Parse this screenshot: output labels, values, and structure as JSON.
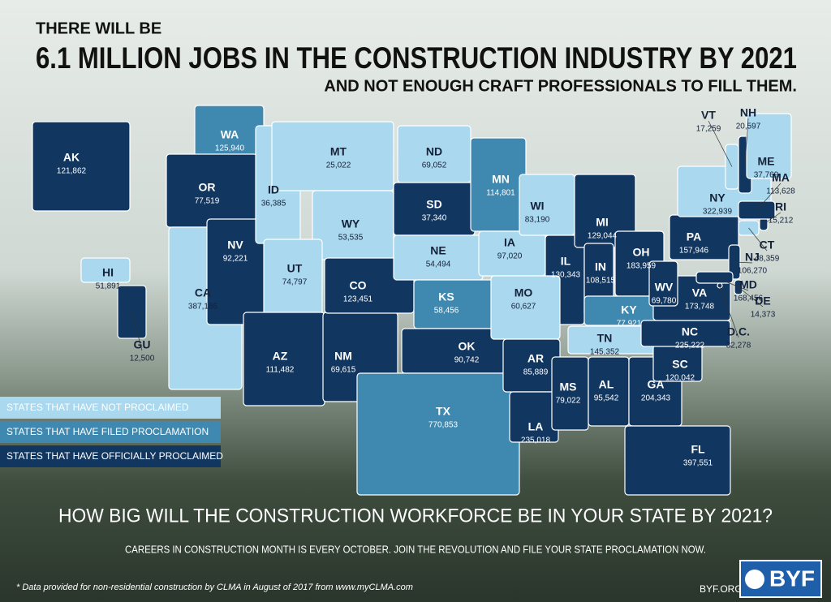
{
  "header": {
    "line1": "THERE WILL BE",
    "line2": "6.1 MILLION JOBS IN THE CONSTRUCTION INDUSTRY BY 2021",
    "line3": "AND NOT ENOUGH CRAFT PROFESSIONALS TO FILL THEM."
  },
  "legend": [
    {
      "label": "STATES THAT HAVE NOT PROCLAIMED",
      "color": "#a9d8ef"
    },
    {
      "label": "STATES THAT HAVE FILED PROCLAMATION",
      "color": "#3f88b0"
    },
    {
      "label": "STATES THAT HAVE OFFICIALLY PROCLAIMED",
      "color": "#113660"
    }
  ],
  "states": [
    {
      "abbr": "AK",
      "jobs": "121,862",
      "status": 2
    },
    {
      "abbr": "WA",
      "jobs": "125,940",
      "status": 1
    },
    {
      "abbr": "OR",
      "jobs": "77,519",
      "status": 2
    },
    {
      "abbr": "CA",
      "jobs": "387,186",
      "status": 0
    },
    {
      "abbr": "NV",
      "jobs": "92,221",
      "status": 2
    },
    {
      "abbr": "ID",
      "jobs": "36,385",
      "status": 0
    },
    {
      "abbr": "MT",
      "jobs": "25,022",
      "status": 0
    },
    {
      "abbr": "WY",
      "jobs": "53,535",
      "status": 0
    },
    {
      "abbr": "UT",
      "jobs": "74,797",
      "status": 0
    },
    {
      "abbr": "AZ",
      "jobs": "111,482",
      "status": 2
    },
    {
      "abbr": "NM",
      "jobs": "69,615",
      "status": 2
    },
    {
      "abbr": "CO",
      "jobs": "123,451",
      "status": 2
    },
    {
      "abbr": "ND",
      "jobs": "69,052",
      "status": 0
    },
    {
      "abbr": "SD",
      "jobs": "37,340",
      "status": 2
    },
    {
      "abbr": "NE",
      "jobs": "54,494",
      "status": 0
    },
    {
      "abbr": "KS",
      "jobs": "58,456",
      "status": 1
    },
    {
      "abbr": "OK",
      "jobs": "90,742",
      "status": 2
    },
    {
      "abbr": "TX",
      "jobs": "770,853",
      "status": 1
    },
    {
      "abbr": "MN",
      "jobs": "114,801",
      "status": 1
    },
    {
      "abbr": "IA",
      "jobs": "97,020",
      "status": 0
    },
    {
      "abbr": "WI",
      "jobs": "83,190",
      "status": 0
    },
    {
      "abbr": "IL",
      "jobs": "130,343",
      "status": 2
    },
    {
      "abbr": "MI",
      "jobs": "129,044",
      "status": 2
    },
    {
      "abbr": "IN",
      "jobs": "108,515",
      "status": 2
    },
    {
      "abbr": "OH",
      "jobs": "183,959",
      "status": 2
    },
    {
      "abbr": "MO",
      "jobs": "60,627",
      "status": 0
    },
    {
      "abbr": "KY",
      "jobs": "77,921",
      "status": 1
    },
    {
      "abbr": "TN",
      "jobs": "145,352",
      "status": 0
    },
    {
      "abbr": "AR",
      "jobs": "85,889",
      "status": 2
    },
    {
      "abbr": "LA",
      "jobs": "235,018",
      "status": 2
    },
    {
      "abbr": "MS",
      "jobs": "79,022",
      "status": 2
    },
    {
      "abbr": "AL",
      "jobs": "95,542",
      "status": 2
    },
    {
      "abbr": "GA",
      "jobs": "204,343",
      "status": 2
    },
    {
      "abbr": "FL",
      "jobs": "397,551",
      "status": 2
    },
    {
      "abbr": "SC",
      "jobs": "120,042",
      "status": 2
    },
    {
      "abbr": "NC",
      "jobs": "225,222",
      "status": 2
    },
    {
      "abbr": "VA",
      "jobs": "173,748",
      "status": 2
    },
    {
      "abbr": "WV",
      "jobs": "69,780",
      "status": 2
    },
    {
      "abbr": "PA",
      "jobs": "157,946",
      "status": 2
    },
    {
      "abbr": "NY",
      "jobs": "322,939",
      "status": 0
    },
    {
      "abbr": "NJ",
      "jobs": "106,270",
      "status": 2
    },
    {
      "abbr": "DE",
      "jobs": "14,373",
      "status": 2
    },
    {
      "abbr": "MD",
      "jobs": "168,456",
      "status": 2
    },
    {
      "abbr": "D.C.",
      "jobs": "32,278",
      "status": 2
    },
    {
      "abbr": "CT",
      "jobs": "48,359",
      "status": 0
    },
    {
      "abbr": "RI",
      "jobs": "15,212",
      "status": 2
    },
    {
      "abbr": "MA",
      "jobs": "113,628",
      "status": 2
    },
    {
      "abbr": "NH",
      "jobs": "20,597",
      "status": 2
    },
    {
      "abbr": "VT",
      "jobs": "17,259",
      "status": 0
    },
    {
      "abbr": "ME",
      "jobs": "37,769",
      "status": 0
    },
    {
      "abbr": "HI",
      "jobs": "51,891",
      "status": 0
    },
    {
      "abbr": "GU",
      "jobs": "12,500",
      "status": 2
    }
  ],
  "question": "HOW BIG WILL THE CONSTRUCTION WORKFORCE BE IN YOUR STATE BY 2021?",
  "subtext": "CAREERS IN CONSTRUCTION MONTH IS EVERY OCTOBER. JOIN THE REVOLUTION AND FILE YOUR STATE PROCLAMATION NOW.",
  "footnote": "* Data provided for non-residential construction by CLMA in August of 2017 from www.myCLMA.com",
  "site": "BYF.ORG",
  "logo": "BYF"
}
